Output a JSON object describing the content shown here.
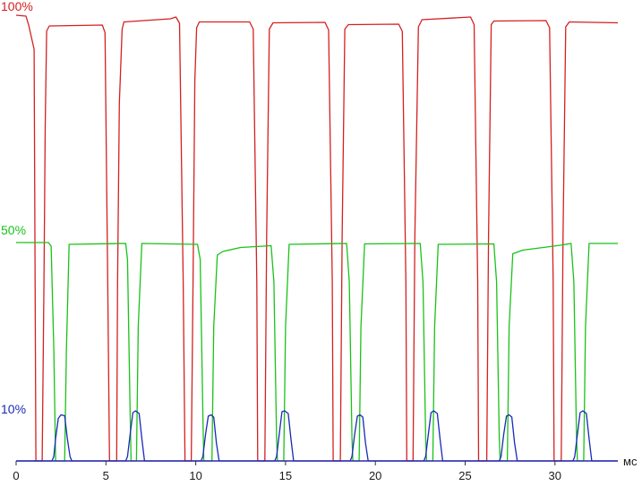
{
  "chart_data": {
    "type": "line",
    "xlabel": "мс",
    "ylabel": "",
    "xlim": [
      0,
      33.5
    ],
    "ylim": [
      0,
      100
    ],
    "grid": false,
    "x_ticks": [
      0,
      5,
      10,
      15,
      20,
      25,
      30
    ],
    "x_tick_labels": [
      "0",
      "5",
      "10",
      "15",
      "20",
      "25",
      "30"
    ],
    "level_labels": [
      {
        "text": "100%",
        "value": 100,
        "color": "#d42020"
      },
      {
        "text": "50%",
        "value": 50,
        "color": "#19c219"
      },
      {
        "text": "10%",
        "value": 10,
        "color": "#1a2ab8"
      }
    ],
    "series": [
      {
        "color": "#d42020",
        "level": 100,
        "points": [
          [
            0,
            99.6
          ],
          [
            0.55,
            99.4
          ],
          [
            0.7,
            97.4
          ],
          [
            1.0,
            92
          ],
          [
            1.05,
            45
          ],
          [
            1.1,
            0
          ],
          [
            1.45,
            0
          ],
          [
            1.55,
            40
          ],
          [
            1.62,
            75
          ],
          [
            1.7,
            96.1
          ],
          [
            1.85,
            97.2
          ],
          [
            4.8,
            97.4
          ],
          [
            4.95,
            95.7
          ],
          [
            5.1,
            40
          ],
          [
            5.2,
            0
          ],
          [
            5.6,
            0
          ],
          [
            5.65,
            40
          ],
          [
            5.75,
            80
          ],
          [
            5.9,
            96.5
          ],
          [
            6.0,
            98.1
          ],
          [
            8.6,
            98.8
          ],
          [
            8.9,
            99.2
          ],
          [
            9.1,
            97.8
          ],
          [
            9.3,
            40
          ],
          [
            9.4,
            0
          ],
          [
            9.75,
            0
          ],
          [
            9.85,
            40
          ],
          [
            9.95,
            85
          ],
          [
            10.05,
            96.8
          ],
          [
            10.2,
            98.1
          ],
          [
            13.0,
            98.1
          ],
          [
            13.2,
            96.5
          ],
          [
            13.4,
            40
          ],
          [
            13.45,
            0
          ],
          [
            13.85,
            0
          ],
          [
            13.95,
            50
          ],
          [
            14.1,
            96.5
          ],
          [
            14.3,
            97.9
          ],
          [
            17.2,
            98.0
          ],
          [
            17.4,
            96.3
          ],
          [
            17.6,
            40
          ],
          [
            17.65,
            0
          ],
          [
            18.05,
            0
          ],
          [
            18.15,
            50
          ],
          [
            18.3,
            96.5
          ],
          [
            18.5,
            97.5
          ],
          [
            21.3,
            97.6
          ],
          [
            21.5,
            96.0
          ],
          [
            21.7,
            40
          ],
          [
            21.75,
            0
          ],
          [
            22.1,
            0
          ],
          [
            22.2,
            50
          ],
          [
            22.4,
            97.0
          ],
          [
            22.6,
            98.6
          ],
          [
            25.3,
            99.2
          ],
          [
            25.5,
            97.5
          ],
          [
            25.7,
            40
          ],
          [
            25.75,
            0
          ],
          [
            26.2,
            0
          ],
          [
            26.3,
            50
          ],
          [
            26.45,
            97.5
          ],
          [
            26.6,
            98.3
          ],
          [
            29.5,
            98.4
          ],
          [
            29.7,
            96.8
          ],
          [
            29.9,
            40
          ],
          [
            29.95,
            0
          ],
          [
            30.35,
            0
          ],
          [
            30.45,
            50
          ],
          [
            30.6,
            97.0
          ],
          [
            30.8,
            98.1
          ],
          [
            33.5,
            97.9
          ]
        ]
      },
      {
        "color": "#19c219",
        "level": 50,
        "points": [
          [
            0,
            48.8
          ],
          [
            1.8,
            48.8
          ],
          [
            1.95,
            48.0
          ],
          [
            2.1,
            25
          ],
          [
            2.2,
            0
          ],
          [
            2.7,
            0
          ],
          [
            2.8,
            25
          ],
          [
            2.95,
            48.4
          ],
          [
            6.1,
            48.6
          ],
          [
            6.2,
            45
          ],
          [
            6.35,
            10
          ],
          [
            6.4,
            0
          ],
          [
            6.7,
            0
          ],
          [
            6.8,
            30
          ],
          [
            7.0,
            48.6
          ],
          [
            10.1,
            48.4
          ],
          [
            10.25,
            45
          ],
          [
            10.4,
            10
          ],
          [
            10.45,
            0
          ],
          [
            10.9,
            0
          ],
          [
            11.0,
            30
          ],
          [
            11.2,
            46.0
          ],
          [
            11.5,
            46.8
          ],
          [
            12.5,
            47.7
          ],
          [
            14.2,
            48.1
          ],
          [
            14.35,
            40
          ],
          [
            14.5,
            5
          ],
          [
            14.55,
            0
          ],
          [
            14.9,
            0
          ],
          [
            15.0,
            30
          ],
          [
            15.2,
            48.4
          ],
          [
            18.4,
            48.6
          ],
          [
            18.55,
            40
          ],
          [
            18.7,
            5
          ],
          [
            18.75,
            0
          ],
          [
            19.1,
            0
          ],
          [
            19.2,
            30
          ],
          [
            19.4,
            48.5
          ],
          [
            22.5,
            48.6
          ],
          [
            22.65,
            40
          ],
          [
            22.8,
            5
          ],
          [
            22.85,
            0
          ],
          [
            23.2,
            0
          ],
          [
            23.3,
            30
          ],
          [
            23.5,
            48.4
          ],
          [
            26.6,
            48.5
          ],
          [
            26.75,
            40
          ],
          [
            26.9,
            5
          ],
          [
            26.95,
            0
          ],
          [
            27.35,
            0
          ],
          [
            27.45,
            30
          ],
          [
            27.65,
            46.3
          ],
          [
            28.2,
            47.1
          ],
          [
            30.3,
            48.2
          ],
          [
            30.9,
            48.6
          ],
          [
            31.05,
            40
          ],
          [
            31.2,
            5
          ],
          [
            31.25,
            0
          ],
          [
            31.6,
            0
          ],
          [
            31.7,
            30
          ],
          [
            31.9,
            48.6
          ],
          [
            33.5,
            48.6
          ]
        ]
      },
      {
        "color": "#1a2ab8",
        "level": 10,
        "points": [
          [
            0,
            0
          ],
          [
            2.0,
            0
          ],
          [
            2.1,
            1
          ],
          [
            2.2,
            5
          ],
          [
            2.35,
            9.5
          ],
          [
            2.5,
            10.3
          ],
          [
            2.7,
            10.1
          ],
          [
            2.85,
            5
          ],
          [
            3.0,
            1
          ],
          [
            3.1,
            0
          ],
          [
            6.1,
            0
          ],
          [
            6.2,
            1
          ],
          [
            6.35,
            6
          ],
          [
            6.5,
            10.8
          ],
          [
            6.65,
            11.2
          ],
          [
            6.85,
            10.6
          ],
          [
            7.0,
            5
          ],
          [
            7.15,
            0
          ],
          [
            10.3,
            0
          ],
          [
            10.4,
            1
          ],
          [
            10.55,
            6
          ],
          [
            10.7,
            10.0
          ],
          [
            10.85,
            10.3
          ],
          [
            11.0,
            9.8
          ],
          [
            11.15,
            4
          ],
          [
            11.3,
            0
          ],
          [
            14.4,
            0
          ],
          [
            14.5,
            1
          ],
          [
            14.65,
            6
          ],
          [
            14.8,
            11.0
          ],
          [
            14.95,
            11.2
          ],
          [
            15.15,
            10.6
          ],
          [
            15.3,
            5
          ],
          [
            15.45,
            0
          ],
          [
            18.6,
            0
          ],
          [
            18.7,
            1
          ],
          [
            18.85,
            6
          ],
          [
            19.0,
            10.0
          ],
          [
            19.15,
            10.3
          ],
          [
            19.3,
            9.8
          ],
          [
            19.45,
            4
          ],
          [
            19.6,
            0
          ],
          [
            22.7,
            0
          ],
          [
            22.8,
            1
          ],
          [
            22.95,
            6
          ],
          [
            23.1,
            10.8
          ],
          [
            23.25,
            11.2
          ],
          [
            23.45,
            10.6
          ],
          [
            23.6,
            5
          ],
          [
            23.75,
            0
          ],
          [
            26.9,
            0
          ],
          [
            27.0,
            1
          ],
          [
            27.15,
            6
          ],
          [
            27.3,
            10.0
          ],
          [
            27.45,
            10.3
          ],
          [
            27.6,
            9.8
          ],
          [
            27.75,
            4
          ],
          [
            27.9,
            0
          ],
          [
            31.0,
            0
          ],
          [
            31.1,
            1
          ],
          [
            31.25,
            6
          ],
          [
            31.4,
            10.8
          ],
          [
            31.55,
            11.2
          ],
          [
            31.75,
            10.6
          ],
          [
            31.9,
            5
          ],
          [
            32.05,
            0
          ],
          [
            33.5,
            0
          ]
        ]
      }
    ]
  }
}
